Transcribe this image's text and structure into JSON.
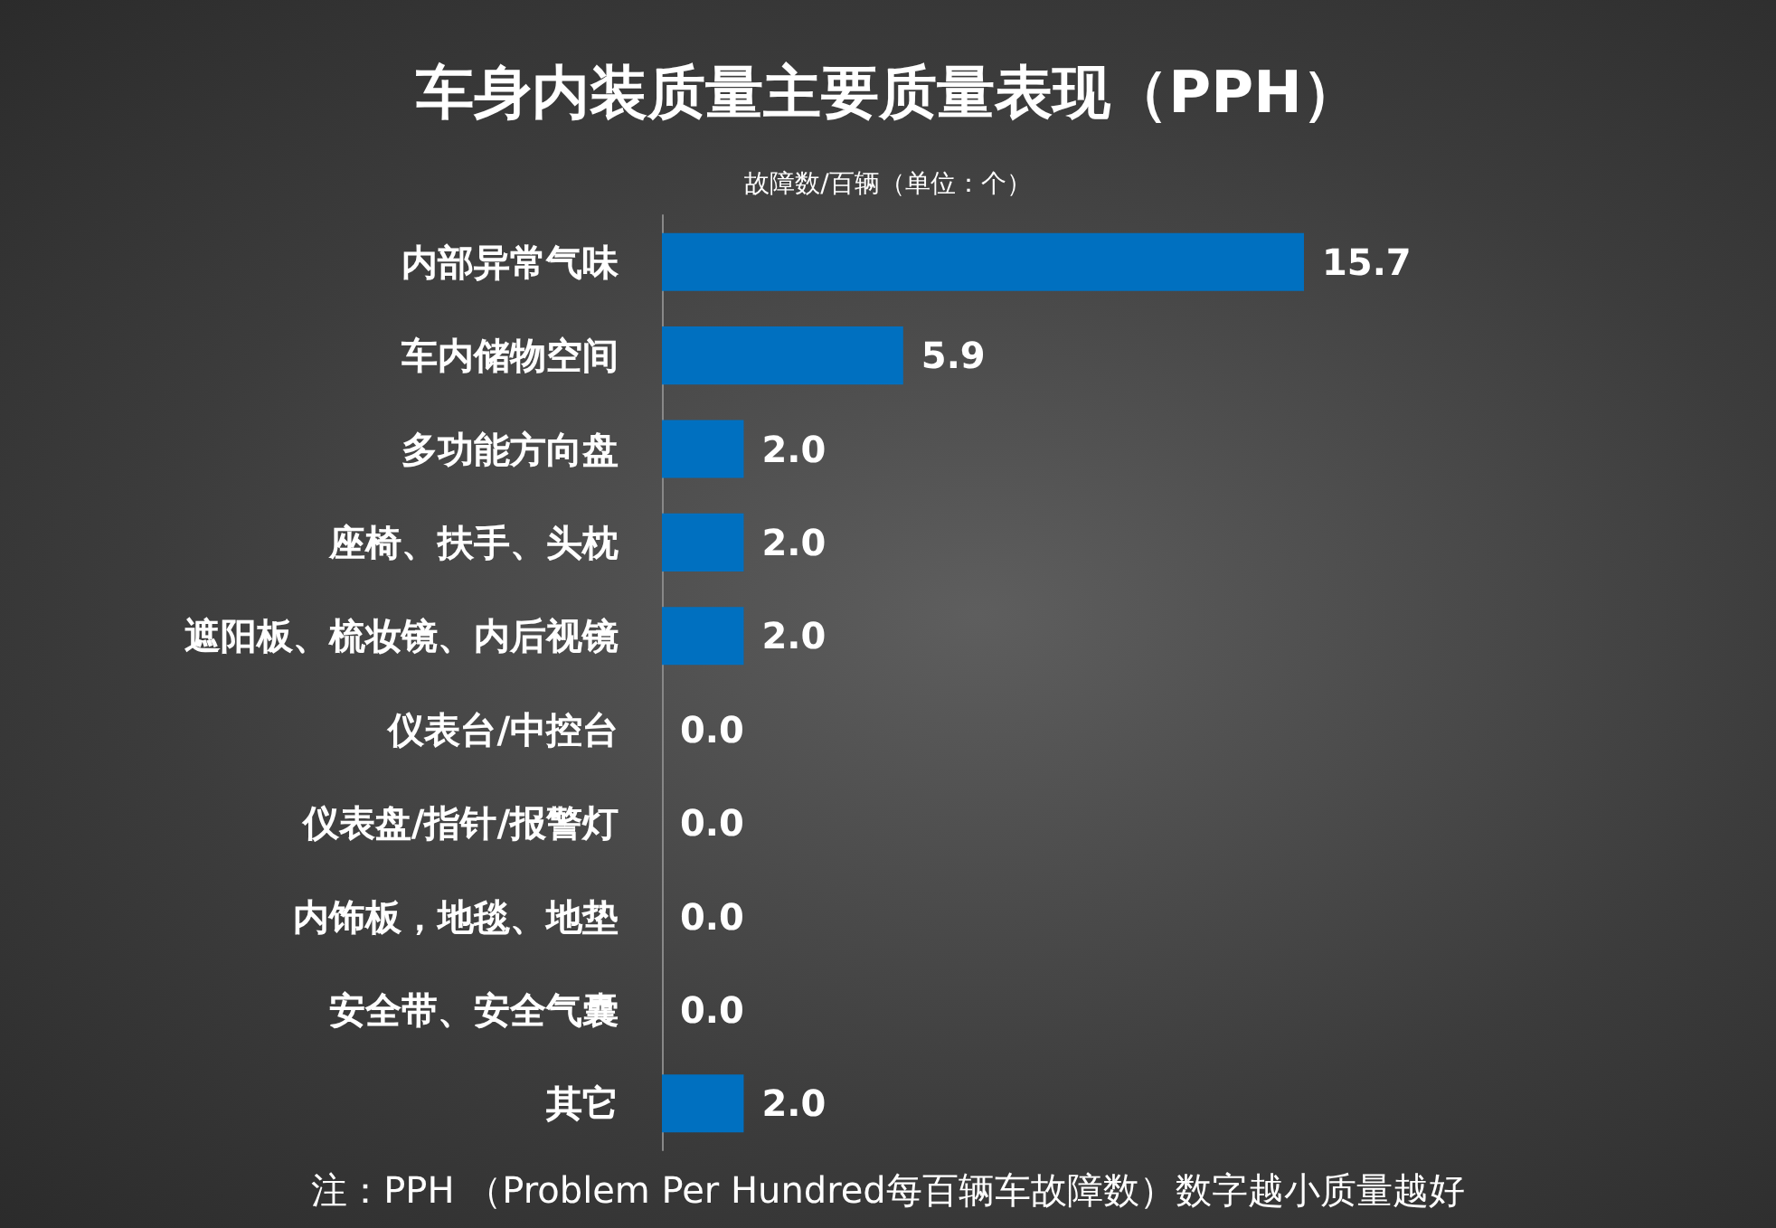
{
  "chart_data": {
    "type": "bar",
    "orientation": "horizontal",
    "title": "车身内装质量主要质量表现（PPH）",
    "subtitle": "故障数/百辆（单位：个）",
    "categories": [
      "内部异常气味",
      "车内储物空间",
      "多功能方向盘",
      "座椅、扶手、头枕",
      "遮阳板、梳妆镜、内后视镜",
      "仪表台/中控台",
      "仪表盘/指针/报警灯",
      "内饰板，地毯、地垫",
      "安全带、安全气囊",
      "其它"
    ],
    "values": [
      15.7,
      5.9,
      2.0,
      2.0,
      2.0,
      0.0,
      0.0,
      0.0,
      0.0,
      2.0
    ],
    "value_labels": [
      "15.7",
      "5.9",
      "2.0",
      "2.0",
      "2.0",
      "0.0",
      "0.0",
      "0.0",
      "0.0",
      "2.0"
    ],
    "color": "#0070c0",
    "annotations": [
      "注：PPH （Problem Per Hundred每百辆车故障数）数字越小质量越好"
    ]
  }
}
